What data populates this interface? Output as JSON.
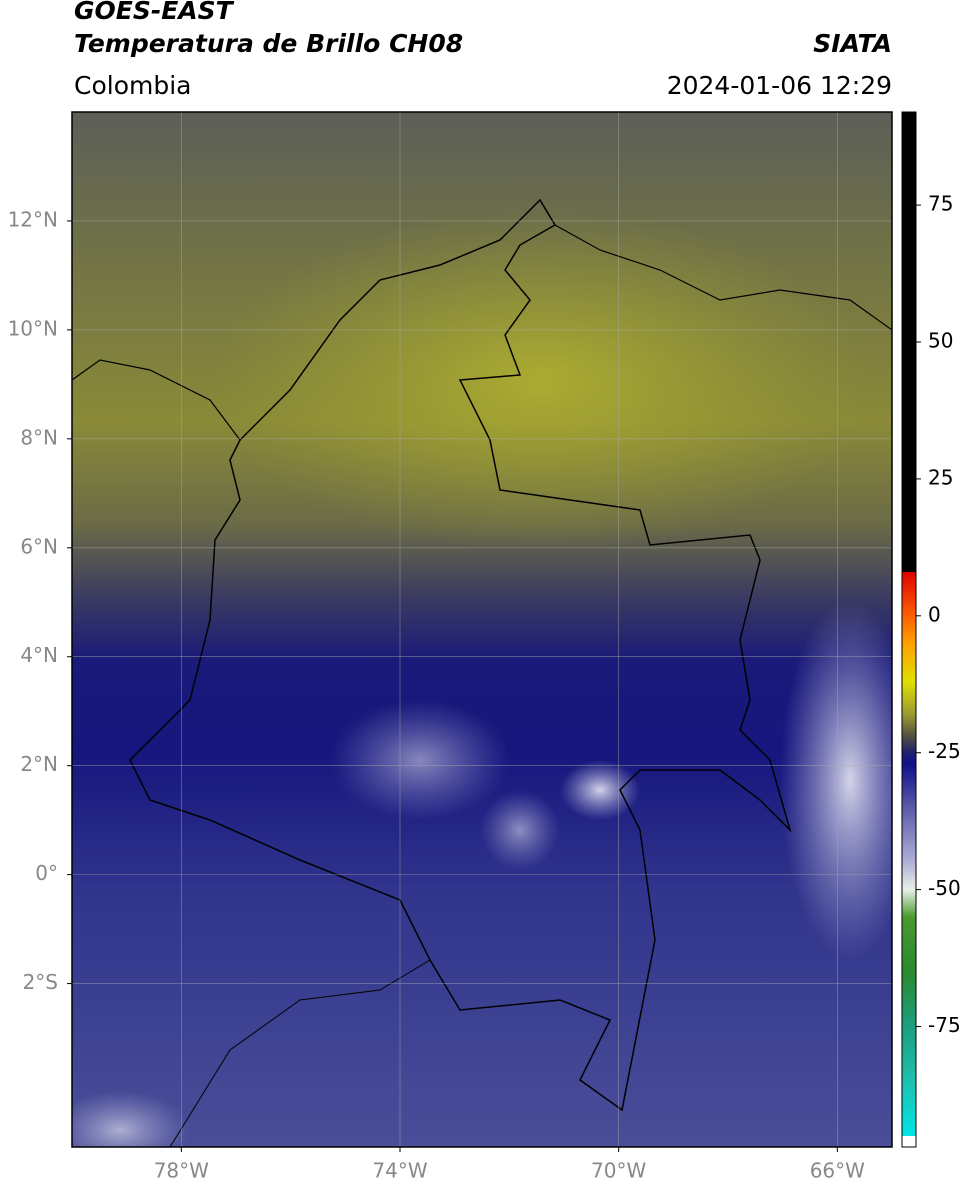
{
  "chart_data": {
    "type": "map",
    "title": "GOES-EAST",
    "subtitle": "Temperatura de Brillo CH08",
    "source": "SIATA",
    "region": "Colombia",
    "datetime": "2024-01-06 12:29",
    "xlim": [
      -80,
      -65
    ],
    "ylim": [
      -5,
      14
    ],
    "xticks": [
      {
        "value": -78,
        "label": "78°W"
      },
      {
        "value": -74,
        "label": "74°W"
      },
      {
        "value": -70,
        "label": "70°W"
      },
      {
        "value": -66,
        "label": "66°W"
      }
    ],
    "yticks": [
      {
        "value": 12,
        "label": "12°N"
      },
      {
        "value": 10,
        "label": "10°N"
      },
      {
        "value": 8,
        "label": "8°N"
      },
      {
        "value": 6,
        "label": "6°N"
      },
      {
        "value": 4,
        "label": "4°N"
      },
      {
        "value": 2,
        "label": "2°N"
      },
      {
        "value": 0,
        "label": "0°"
      },
      {
        "value": -2,
        "label": "2°S"
      }
    ],
    "grid": true,
    "colorbar": {
      "lim": [
        -97,
        92
      ],
      "ticks": [
        75,
        50,
        25,
        0,
        -25,
        -50,
        -75
      ],
      "stops": [
        [
          -97,
          "#ffffff"
        ],
        [
          -95,
          "#ffffff"
        ],
        [
          -95,
          "#00e5e5"
        ],
        [
          -85,
          "#20c0b0"
        ],
        [
          -75,
          "#1aa080"
        ],
        [
          -65,
          "#2a8a30"
        ],
        [
          -55,
          "#4a9a30"
        ],
        [
          -50,
          "#e8f0e8"
        ],
        [
          -45,
          "#b0b0d8"
        ],
        [
          -35,
          "#5a5aa8"
        ],
        [
          -27,
          "#10108a"
        ],
        [
          -25,
          "#202070"
        ],
        [
          -22,
          "#505040"
        ],
        [
          -18,
          "#9a9a30"
        ],
        [
          -12,
          "#e0e000"
        ],
        [
          -5,
          "#ffa000"
        ],
        [
          0,
          "#ff6000"
        ],
        [
          8,
          "#e00000"
        ],
        [
          8,
          "#000000"
        ],
        [
          92,
          "#000000"
        ]
      ]
    }
  }
}
